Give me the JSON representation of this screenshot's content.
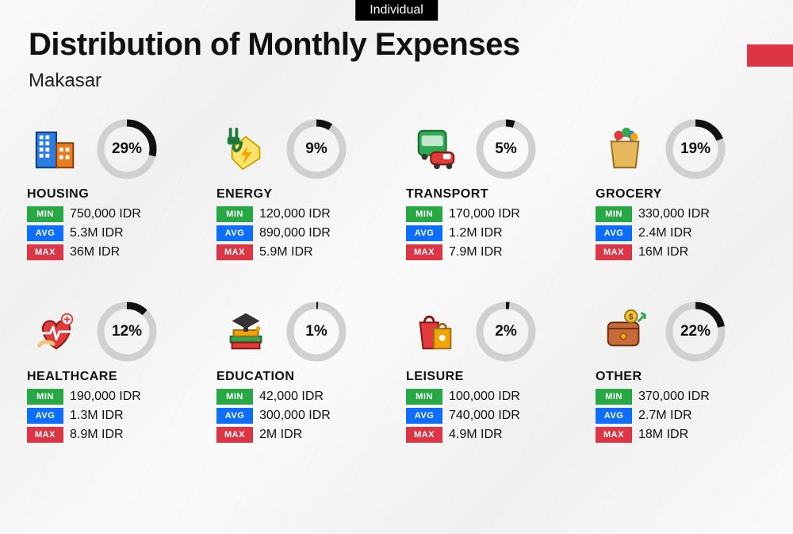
{
  "header": {
    "tag": "Individual",
    "title": "Distribution of Monthly Expenses",
    "subtitle": "Makasar"
  },
  "flag_color": "#dc3545",
  "ring_style": {
    "radius": 33,
    "stroke_width": 9,
    "track_color": "#d0d0d0",
    "fill_color": "#111111"
  },
  "badges": {
    "min": {
      "label": "MIN",
      "bg": "#28a745"
    },
    "avg": {
      "label": "AVG",
      "bg": "#0d6efd"
    },
    "max": {
      "label": "MAX",
      "bg": "#dc3545"
    }
  },
  "categories": [
    {
      "name": "HOUSING",
      "pct": 29,
      "pct_label": "29%",
      "min": "750,000 IDR",
      "avg": "5.3M IDR",
      "max": "36M IDR",
      "icon": "housing"
    },
    {
      "name": "ENERGY",
      "pct": 9,
      "pct_label": "9%",
      "min": "120,000 IDR",
      "avg": "890,000 IDR",
      "max": "5.9M IDR",
      "icon": "energy"
    },
    {
      "name": "TRANSPORT",
      "pct": 5,
      "pct_label": "5%",
      "min": "170,000 IDR",
      "avg": "1.2M IDR",
      "max": "7.9M IDR",
      "icon": "transport"
    },
    {
      "name": "GROCERY",
      "pct": 19,
      "pct_label": "19%",
      "min": "330,000 IDR",
      "avg": "2.4M IDR",
      "max": "16M IDR",
      "icon": "grocery"
    },
    {
      "name": "HEALTHCARE",
      "pct": 12,
      "pct_label": "12%",
      "min": "190,000 IDR",
      "avg": "1.3M IDR",
      "max": "8.9M IDR",
      "icon": "healthcare"
    },
    {
      "name": "EDUCATION",
      "pct": 1,
      "pct_label": "1%",
      "min": "42,000 IDR",
      "avg": "300,000 IDR",
      "max": "2M IDR",
      "icon": "education"
    },
    {
      "name": "LEISURE",
      "pct": 2,
      "pct_label": "2%",
      "min": "100,000 IDR",
      "avg": "740,000 IDR",
      "max": "4.9M IDR",
      "icon": "leisure"
    },
    {
      "name": "OTHER",
      "pct": 22,
      "pct_label": "22%",
      "min": "370,000 IDR",
      "avg": "2.7M IDR",
      "max": "18M IDR",
      "icon": "other"
    }
  ]
}
